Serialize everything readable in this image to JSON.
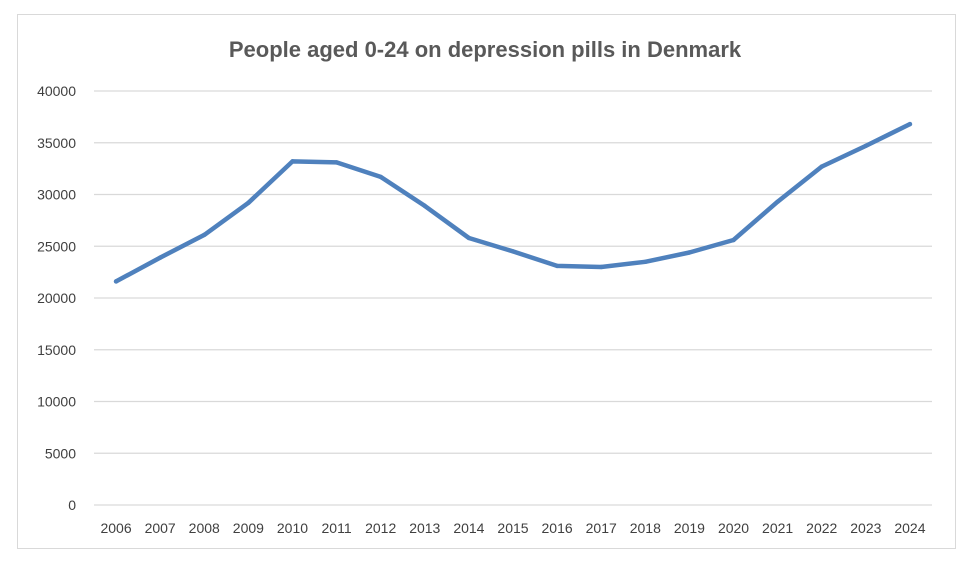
{
  "chart_data": {
    "type": "line",
    "title": "People aged 0-24 on depression pills in Denmark",
    "xlabel": "",
    "ylabel": "",
    "categories": [
      "2006",
      "2007",
      "2008",
      "2009",
      "2010",
      "2011",
      "2012",
      "2013",
      "2014",
      "2015",
      "2016",
      "2017",
      "2018",
      "2019",
      "2020",
      "2021",
      "2022",
      "2023",
      "2024"
    ],
    "series": [
      {
        "values": [
          21600,
          23900,
          26100,
          29200,
          33200,
          33100,
          31700,
          28900,
          25800,
          24500,
          23100,
          23000,
          23500,
          24400,
          25600,
          29300,
          32700,
          34700,
          36800
        ]
      }
    ],
    "ylim": [
      0,
      40000
    ],
    "yticks": [
      0,
      5000,
      10000,
      15000,
      20000,
      25000,
      30000,
      35000,
      40000
    ],
    "grid": true,
    "legend": "none",
    "colors": {
      "line": "#4f81bd",
      "grid": "#d9d9d9",
      "text": "#404040",
      "title": "#595959"
    }
  }
}
